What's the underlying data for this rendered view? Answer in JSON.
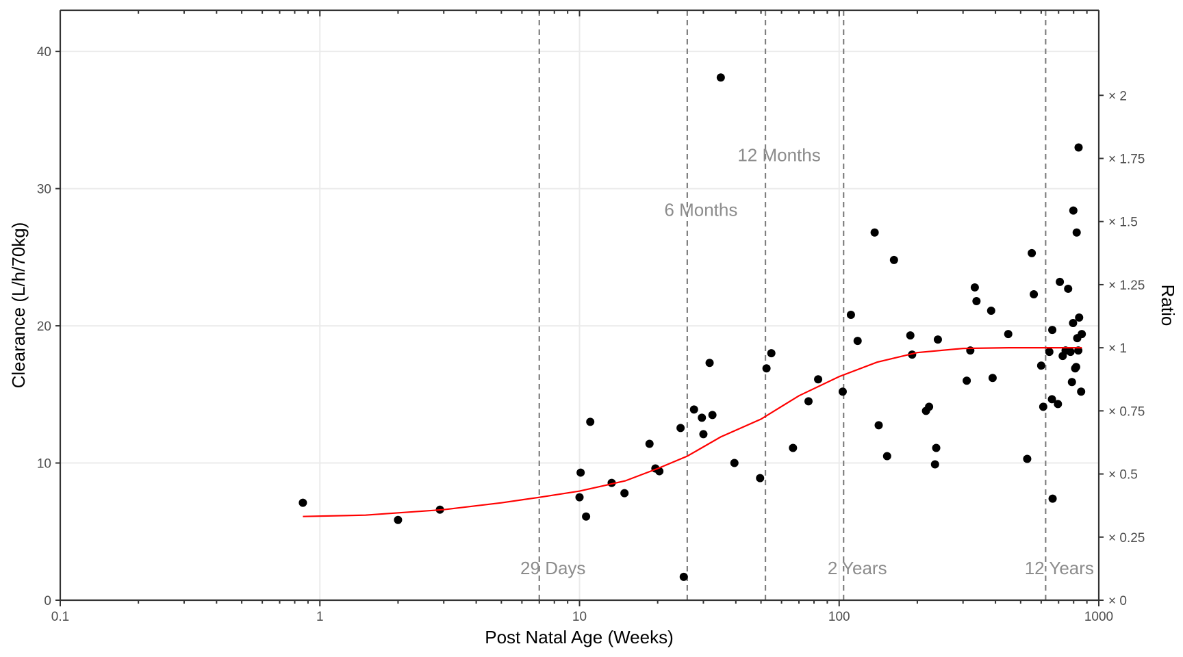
{
  "chart_data": {
    "type": "scatter",
    "title": "",
    "xlabel": "Post Natal Age (Weeks)",
    "ylabel": "Clearance (L/h/70kg)",
    "y2label": "Ratio",
    "x_scale": "log10",
    "xlim": [
      0.1,
      1000
    ],
    "ylim": [
      0,
      43
    ],
    "grid": true,
    "x_ticks": [
      {
        "value": 0.1,
        "label": "0.1"
      },
      {
        "value": 1,
        "label": "1"
      },
      {
        "value": 10,
        "label": "10"
      },
      {
        "value": 100,
        "label": "100"
      },
      {
        "value": 1000,
        "label": "1000"
      }
    ],
    "y_ticks": [
      {
        "value": 0,
        "label": "0"
      },
      {
        "value": 10,
        "label": "10"
      },
      {
        "value": 20,
        "label": "20"
      },
      {
        "value": 30,
        "label": "30"
      },
      {
        "value": 40,
        "label": "40"
      }
    ],
    "y2_ticks": [
      {
        "value": 0,
        "label": "× 0"
      },
      {
        "value": 0.25,
        "label": "× 0.25"
      },
      {
        "value": 0.5,
        "label": "× 0.5"
      },
      {
        "value": 0.75,
        "label": "× 0.75"
      },
      {
        "value": 1,
        "label": "× 1"
      },
      {
        "value": 1.25,
        "label": "× 1.25"
      },
      {
        "value": 1.5,
        "label": "× 1.5"
      },
      {
        "value": 1.75,
        "label": "× 1.75"
      },
      {
        "value": 2,
        "label": "× 2"
      }
    ],
    "y2_reference_clearance": 18.4,
    "reference_lines": [
      {
        "x": 7,
        "label": "29 Days",
        "label_y": 1.9
      },
      {
        "x": 26,
        "label": "6 Months",
        "label_y": 28
      },
      {
        "x": 52,
        "label": "12 Months",
        "label_y": 32
      },
      {
        "x": 104,
        "label": "2 Years",
        "label_y": 1.9
      },
      {
        "x": 624,
        "label": "12 Years",
        "label_y": 1.9
      }
    ],
    "series": [
      {
        "kind": "points",
        "color": "#000000",
        "points": [
          [
            0.86,
            7.1
          ],
          [
            2.0,
            5.85
          ],
          [
            2.9,
            6.6
          ],
          [
            10.1,
            9.3
          ],
          [
            10.0,
            7.5
          ],
          [
            10.6,
            6.1
          ],
          [
            11.0,
            13.0
          ],
          [
            13.3,
            8.55
          ],
          [
            14.9,
            7.8
          ],
          [
            18.6,
            11.4
          ],
          [
            19.6,
            9.6
          ],
          [
            20.3,
            9.4
          ],
          [
            24.5,
            12.55
          ],
          [
            25.2,
            1.7
          ],
          [
            27.6,
            13.9
          ],
          [
            29.6,
            13.3
          ],
          [
            30.0,
            12.1
          ],
          [
            31.7,
            17.3
          ],
          [
            32.5,
            13.5
          ],
          [
            35.0,
            38.1
          ],
          [
            39.5,
            10.0
          ],
          [
            49.6,
            8.9
          ],
          [
            52.5,
            16.9
          ],
          [
            54.8,
            18.0
          ],
          [
            66.4,
            11.1
          ],
          [
            76.2,
            14.5
          ],
          [
            83.0,
            16.1
          ],
          [
            103.2,
            15.2
          ],
          [
            111.0,
            20.8
          ],
          [
            117.8,
            18.9
          ],
          [
            137.0,
            26.8
          ],
          [
            142.0,
            12.75
          ],
          [
            153.0,
            10.5
          ],
          [
            162.6,
            24.8
          ],
          [
            188.0,
            19.3
          ],
          [
            191.0,
            17.9
          ],
          [
            216.0,
            13.8
          ],
          [
            222.0,
            14.1
          ],
          [
            234.0,
            9.9
          ],
          [
            236.5,
            11.1
          ],
          [
            240.0,
            19.0
          ],
          [
            310.0,
            16.0
          ],
          [
            320.0,
            18.2
          ],
          [
            333.0,
            22.8
          ],
          [
            338.0,
            21.8
          ],
          [
            385.0,
            21.1
          ],
          [
            390.0,
            16.2
          ],
          [
            448.0,
            19.4
          ],
          [
            530.0,
            10.3
          ],
          [
            552.0,
            25.3
          ],
          [
            562.0,
            22.3
          ],
          [
            600.0,
            17.1
          ],
          [
            611.0,
            14.1
          ],
          [
            645.0,
            18.1
          ],
          [
            660.0,
            14.65
          ],
          [
            662.0,
            19.7
          ],
          [
            664.0,
            7.4
          ],
          [
            696.0,
            14.3
          ],
          [
            708.0,
            23.2
          ],
          [
            726.0,
            17.8
          ],
          [
            745.0,
            18.2
          ],
          [
            762.0,
            22.7
          ],
          [
            778.0,
            18.1
          ],
          [
            788.0,
            15.9
          ],
          [
            796.0,
            20.2
          ],
          [
            798.0,
            28.4
          ],
          [
            811.0,
            16.9
          ],
          [
            818.0,
            17.0
          ],
          [
            822.0,
            26.8
          ],
          [
            826.0,
            19.1
          ],
          [
            834.0,
            18.2
          ],
          [
            836.0,
            33.0
          ],
          [
            840.0,
            20.6
          ],
          [
            855.0,
            15.2
          ],
          [
            860.0,
            19.4
          ]
        ]
      },
      {
        "kind": "line",
        "color": "#ff0000",
        "points": [
          [
            0.86,
            6.1
          ],
          [
            1.5,
            6.2
          ],
          [
            3.0,
            6.6
          ],
          [
            5.0,
            7.1
          ],
          [
            7.0,
            7.5
          ],
          [
            10.0,
            7.95
          ],
          [
            15.0,
            8.7
          ],
          [
            20.0,
            9.6
          ],
          [
            26.0,
            10.5
          ],
          [
            35.0,
            11.9
          ],
          [
            50.0,
            13.2
          ],
          [
            70.0,
            14.9
          ],
          [
            100.0,
            16.3
          ],
          [
            140.0,
            17.35
          ],
          [
            200.0,
            18.05
          ],
          [
            300.0,
            18.35
          ],
          [
            450.0,
            18.4
          ],
          [
            600.0,
            18.4
          ],
          [
            860.0,
            18.4
          ]
        ]
      }
    ]
  }
}
